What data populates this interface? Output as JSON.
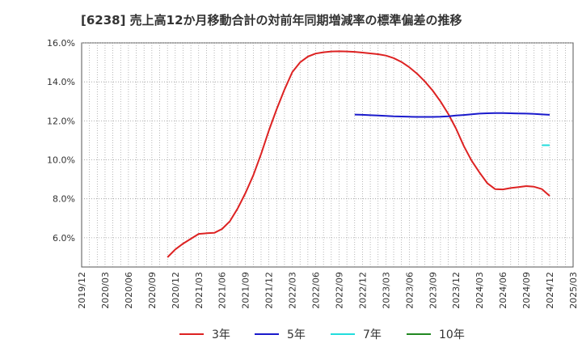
{
  "chart_data": {
    "type": "line",
    "title": "[6238]  売上高12か月移動合計の対前年同期増減率の標準偏差の推移",
    "xlabel": "",
    "ylabel": "",
    "ylim": [
      4.5,
      16.0
    ],
    "yticks": [
      "6.0%",
      "8.0%",
      "10.0%",
      "12.0%",
      "14.0%",
      "16.0%"
    ],
    "ytick_values": [
      6,
      8,
      10,
      12,
      14,
      16
    ],
    "x_range": [
      "2019/12",
      "2025/03"
    ],
    "xticks": [
      "2019/12",
      "2020/03",
      "2020/06",
      "2020/09",
      "2020/12",
      "2021/03",
      "2021/06",
      "2021/09",
      "2021/12",
      "2022/03",
      "2022/06",
      "2022/09",
      "2022/12",
      "2023/03",
      "2023/06",
      "2023/09",
      "2023/12",
      "2024/03",
      "2024/06",
      "2024/09",
      "2024/12",
      "2025/03"
    ],
    "grid": true,
    "legend_position": "bottom",
    "series": [
      {
        "name": "3年",
        "color": "#dd2222",
        "x": [
          "2020/11",
          "2020/12",
          "2021/01",
          "2021/02",
          "2021/03",
          "2021/04",
          "2021/05",
          "2021/06",
          "2021/07",
          "2021/08",
          "2021/09",
          "2021/10",
          "2021/11",
          "2021/12",
          "2022/01",
          "2022/02",
          "2022/03",
          "2022/04",
          "2022/05",
          "2022/06",
          "2022/07",
          "2022/08",
          "2022/09",
          "2022/10",
          "2022/11",
          "2022/12",
          "2023/01",
          "2023/02",
          "2023/03",
          "2023/04",
          "2023/05",
          "2023/06",
          "2023/07",
          "2023/08",
          "2023/09",
          "2023/10",
          "2023/11",
          "2023/12",
          "2024/01",
          "2024/02",
          "2024/03",
          "2024/04",
          "2024/05",
          "2024/06",
          "2024/07",
          "2024/08",
          "2024/09",
          "2024/10",
          "2024/11",
          "2024/12"
        ],
        "values": [
          5.0,
          5.4,
          5.7,
          5.95,
          6.2,
          6.23,
          6.25,
          6.45,
          6.85,
          7.5,
          8.3,
          9.2,
          10.3,
          11.5,
          12.6,
          13.6,
          14.5,
          15.0,
          15.3,
          15.45,
          15.52,
          15.56,
          15.57,
          15.56,
          15.54,
          15.5,
          15.46,
          15.42,
          15.35,
          15.22,
          15.02,
          14.75,
          14.42,
          14.02,
          13.55,
          13.0,
          12.35,
          11.6,
          10.7,
          9.95,
          9.35,
          8.8,
          8.5,
          8.48,
          8.55,
          8.6,
          8.65,
          8.62,
          8.5,
          8.15
        ]
      },
      {
        "name": "5年",
        "color": "#1a1acc",
        "x": [
          "2022/11",
          "2022/12",
          "2023/01",
          "2023/02",
          "2023/03",
          "2023/04",
          "2023/05",
          "2023/06",
          "2023/07",
          "2023/08",
          "2023/09",
          "2023/10",
          "2023/11",
          "2023/12",
          "2024/01",
          "2024/02",
          "2024/03",
          "2024/04",
          "2024/05",
          "2024/06",
          "2024/07",
          "2024/08",
          "2024/09",
          "2024/10",
          "2024/11",
          "2024/12"
        ],
        "values": [
          12.32,
          12.31,
          12.29,
          12.27,
          12.25,
          12.23,
          12.22,
          12.21,
          12.2,
          12.2,
          12.2,
          12.21,
          12.23,
          12.27,
          12.3,
          12.34,
          12.37,
          12.39,
          12.4,
          12.4,
          12.39,
          12.38,
          12.37,
          12.36,
          12.33,
          12.31
        ]
      },
      {
        "name": "7年",
        "color": "#22dddd",
        "x": [
          "2024/11",
          "2024/12"
        ],
        "values": [
          10.75,
          10.75
        ]
      },
      {
        "name": "10年",
        "color": "#228822",
        "x": [],
        "values": []
      }
    ]
  }
}
